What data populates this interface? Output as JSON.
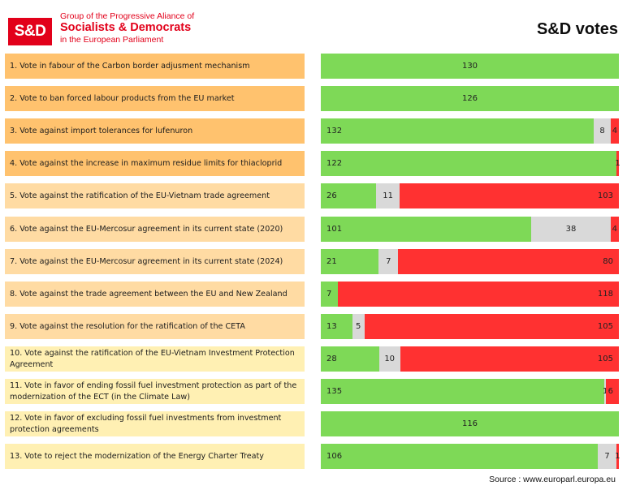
{
  "header": {
    "logo_text": "S&D",
    "group_line1": "Group of the Progressive Aliance of",
    "group_line2": "Socialists & Democrats",
    "group_line3": "in the European Parliament",
    "title": "S&D votes"
  },
  "colors": {
    "brand_red": "#e2001a",
    "in_favour": "#7ed957",
    "abstain": "#d9d9d9",
    "against": "#ff3131",
    "label_orange": "#ffc26e",
    "label_peach": "#ffdba3",
    "label_yellow": "#fff0b3"
  },
  "chart_data": {
    "type": "bar",
    "orientation": "horizontal",
    "stacked": true,
    "normalized": true,
    "title": "S&D votes",
    "categories": [
      "1. Vote in fabour of the Carbon border adjusment mechanism",
      "2. Vote to ban forced labour products from the EU market",
      "3. Vote against import tolerances for lufenuron",
      "4. Vote against the increase in maximum residue limits for thiacloprid",
      "5. Vote against the ratification of the EU-Vietnam trade agreement",
      "6.  Vote against the EU-Mercosur agreement in its current state (2020)",
      "7. Vote against the EU-Mercosur agreement in its current state (2024)",
      "8. Vote against the trade agreement between the EU and New Zealand",
      "9. Vote against the resolution for the ratification of the CETA",
      "10.  Vote against the ratification of the EU-Vietnam Investment Protection Agreement",
      "11. Vote in favor of ending fossil fuel investment protection as part of the modernization of the ECT (in the Climate Law)",
      "12. Vote in favor of excluding fossil fuel investments from investment protection agreements",
      "13. Vote to reject the modernization of the Energy Charter Treaty"
    ],
    "label_tones": [
      "orange",
      "orange",
      "orange",
      "orange",
      "peach",
      "peach",
      "peach",
      "peach",
      "peach",
      "yellow",
      "yellow",
      "yellow",
      "yellow"
    ],
    "series": [
      {
        "values": [
          130,
          126,
          132,
          122,
          26,
          101,
          21,
          7,
          13,
          28,
          135,
          116,
          106
        ]
      },
      {
        "values": [
          0,
          0,
          8,
          0,
          11,
          38,
          7,
          0,
          5,
          10,
          1,
          0,
          7
        ]
      },
      {
        "values": [
          0,
          0,
          4,
          1,
          103,
          4,
          80,
          118,
          105,
          105,
          6,
          0,
          1
        ]
      }
    ],
    "xlabel": "",
    "ylabel": ""
  },
  "footer": {
    "source": "Source : www.europarl.europa.eu"
  }
}
